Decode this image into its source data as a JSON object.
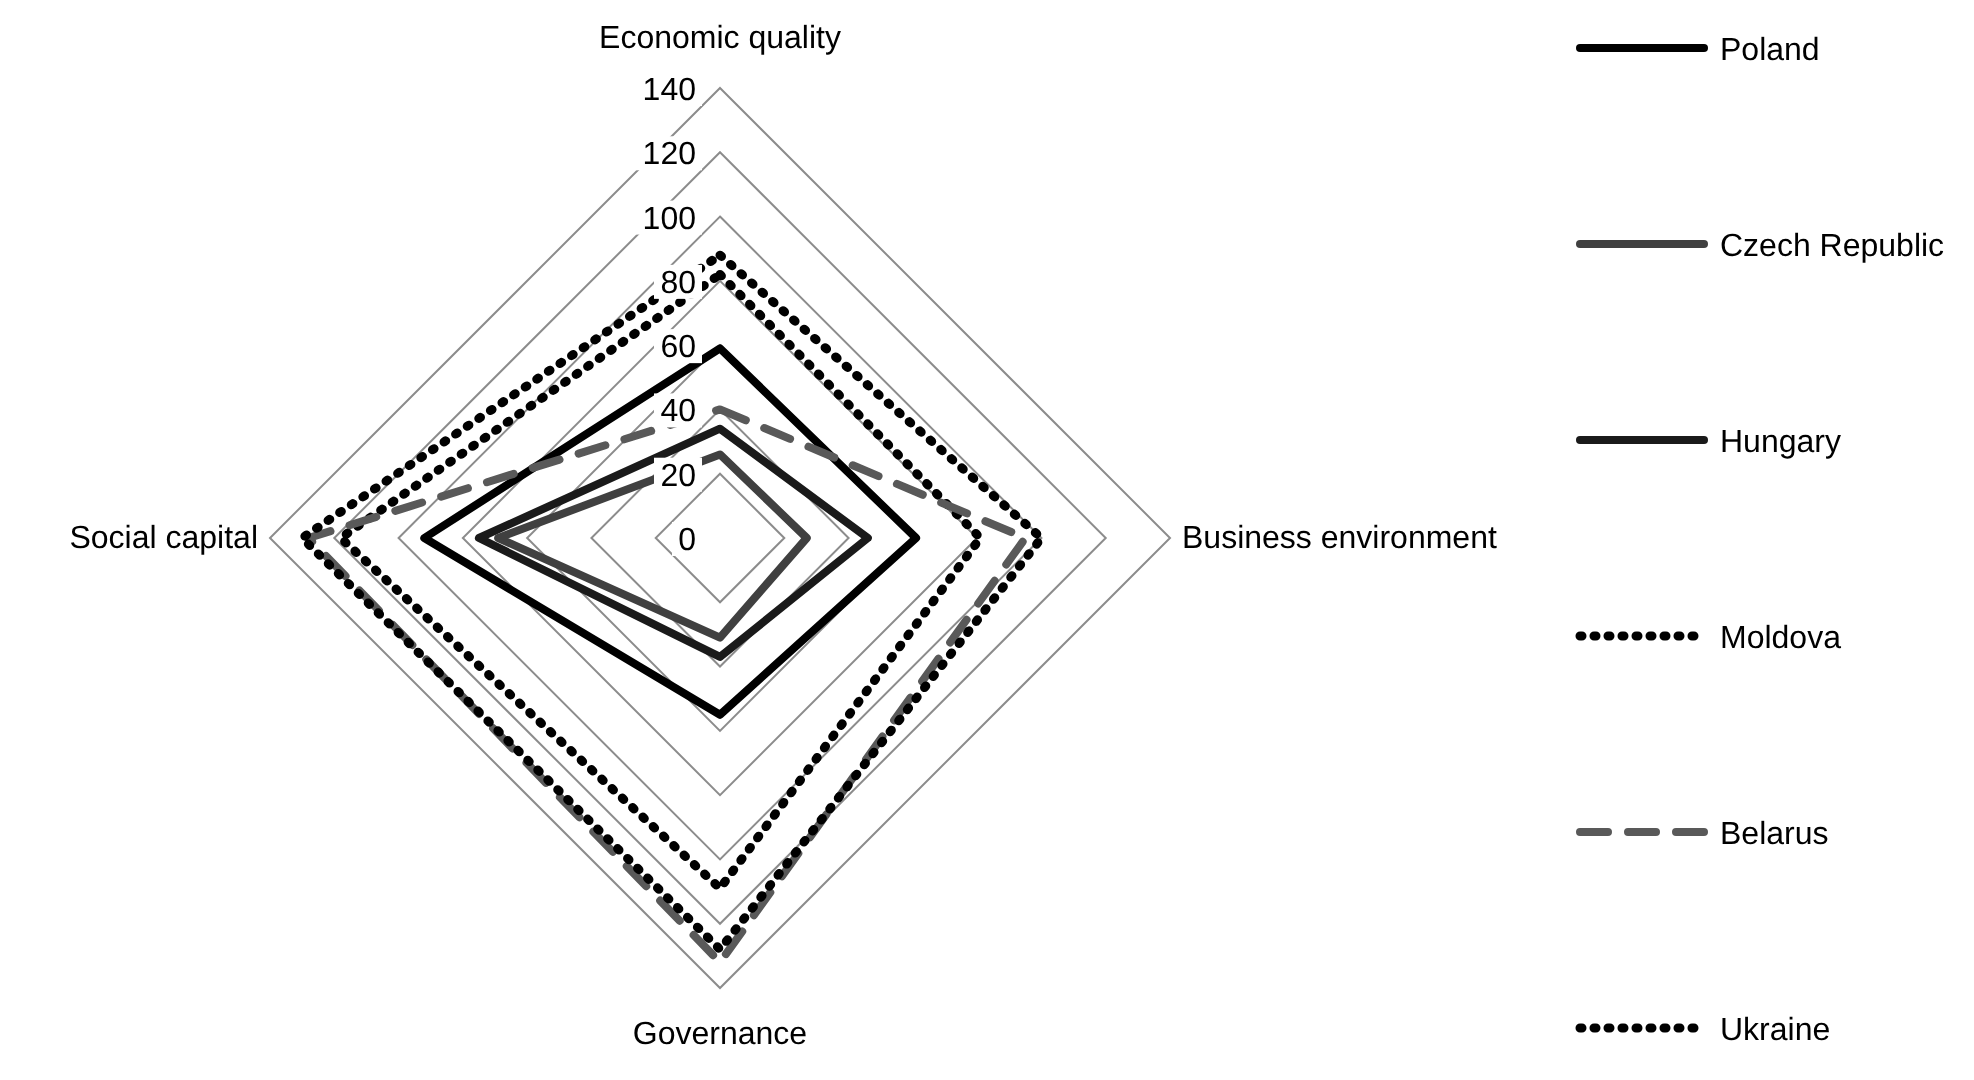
{
  "chart_data": {
    "type": "radar",
    "categories": [
      "Economic quality",
      "Business environment",
      "Governance",
      "Social capital"
    ],
    "ylim": [
      0,
      140
    ],
    "yticks": [
      0,
      20,
      40,
      60,
      80,
      100,
      120,
      140
    ],
    "grid": true,
    "legend": "right",
    "series": [
      {
        "name": "Poland",
        "color": "#000000",
        "line_style": "solid",
        "values": [
          59,
          61,
          55,
          92
        ]
      },
      {
        "name": "Czech Republic",
        "color": "#404040",
        "line_style": "solid",
        "values": [
          26,
          27,
          31,
          69
        ]
      },
      {
        "name": "Hungary",
        "color": "#1a1a1a",
        "line_style": "solid",
        "values": [
          34,
          46,
          37,
          75
        ]
      },
      {
        "name": "Moldova",
        "color": "#000000",
        "line_style": "dotted",
        "values": [
          82,
          81,
          109,
          118
        ]
      },
      {
        "name": "Belarus",
        "color": "#595959",
        "line_style": "dashed",
        "values": [
          40,
          95,
          132,
          128
        ]
      },
      {
        "name": "Ukraine",
        "color": "#000000",
        "line_style": "dotted",
        "values": [
          88,
          100,
          128,
          130
        ]
      }
    ]
  }
}
